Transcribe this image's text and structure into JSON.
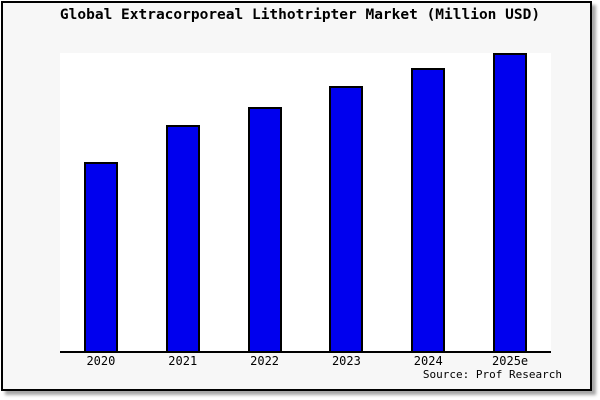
{
  "chart_data": {
    "type": "bar",
    "title": "Global Extracorporeal Lithotripter Market (Million USD)",
    "categories": [
      "2020",
      "2021",
      "2022",
      "2023",
      "2024",
      "2025e"
    ],
    "values": [
      63.5,
      76,
      82,
      89,
      95,
      100
    ],
    "values_estimated": true,
    "xlabel": "",
    "ylabel": "",
    "ylim": [
      0,
      100
    ],
    "y_axis_visible": false,
    "grid": false,
    "legend": false,
    "colors": {
      "bar_fill": "#0000ee",
      "bar_edge": "#000000",
      "plot_background": "#ffffff",
      "figure_background": "#f7f7f7",
      "figure_border": "#000000"
    }
  },
  "source": {
    "label": "Source: Prof Research"
  }
}
